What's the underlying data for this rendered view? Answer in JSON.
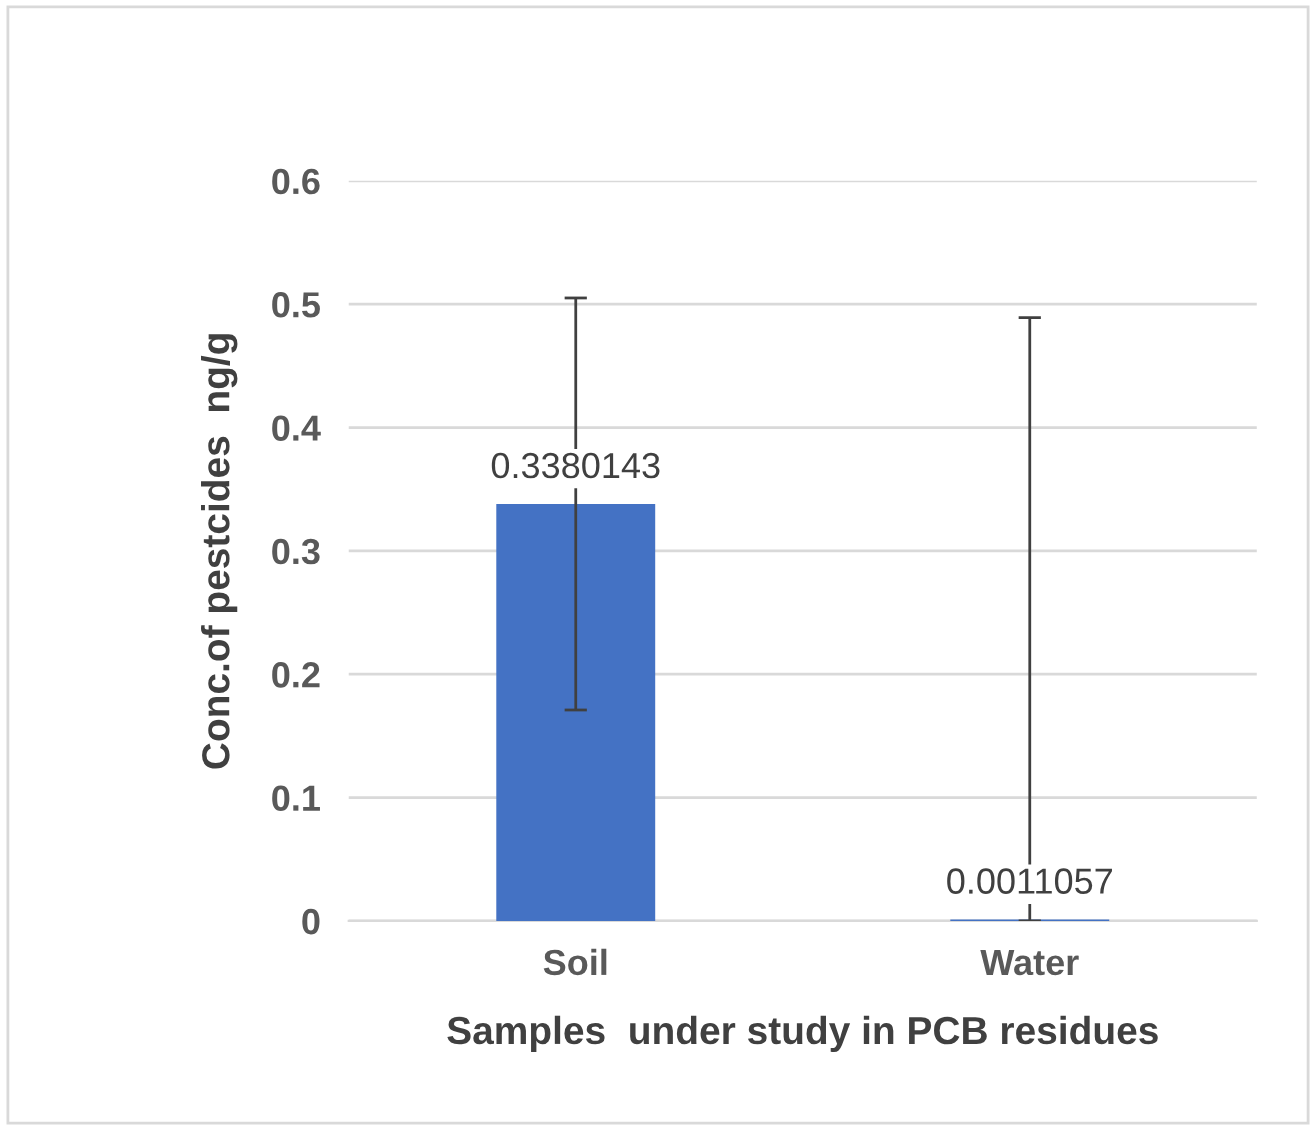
{
  "chart_data": {
    "type": "bar",
    "xlabel": "Samples  under study in PCB residues",
    "ylabel": "Conc.of pestcides  ng/g",
    "categories": [
      "Soil",
      "Water"
    ],
    "values": [
      0.3380143,
      0.0011057
    ],
    "errors": [
      0.167,
      [
        0.0011,
        0.488
      ]
    ],
    "color": "#4472c4",
    "data_labels": true,
    "ylim": [
      0,
      0.6
    ],
    "yticks": [
      0,
      0.1,
      0.2,
      0.3,
      0.4,
      0.5,
      0.6
    ],
    "grid": "y",
    "legend": false
  }
}
